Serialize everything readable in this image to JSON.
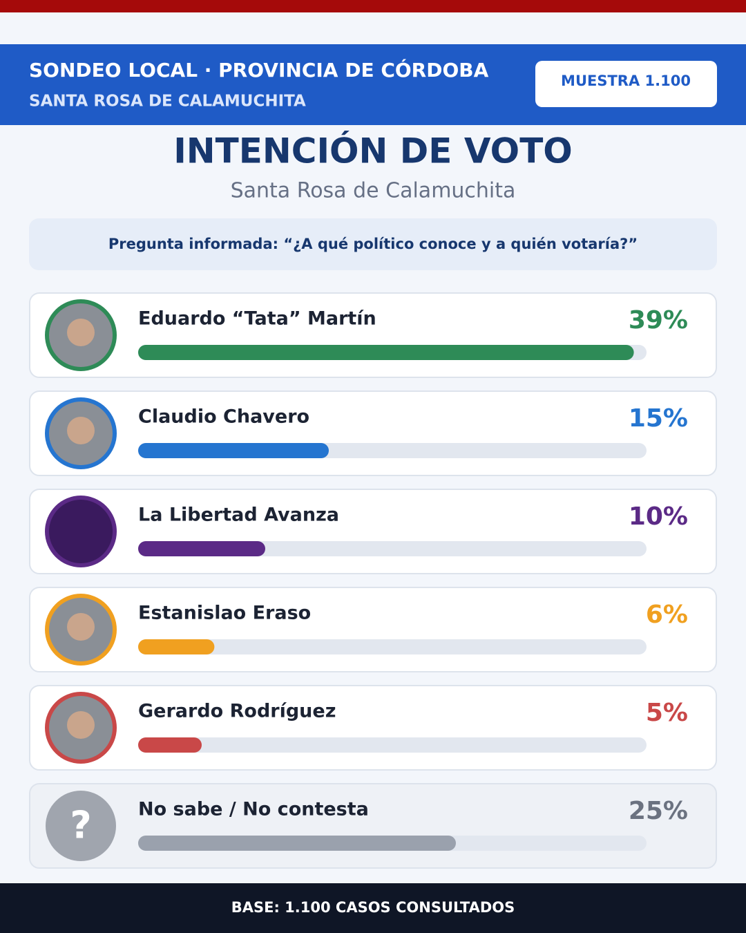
{
  "header": {
    "title": "SONDEO LOCAL · PROVINCIA DE CÓRDOBA",
    "subtitle": "SANTA ROSA DE CALAMUCHITA",
    "badge": "MUESTRA 1.100"
  },
  "question": "Pregunta informada: “¿A qué político conoce y a quién votaría?”",
  "unknown_icon": "?",
  "footer": "BASE: 1.100 CASOS CONSULTADOS",
  "chart_data": {
    "type": "bar",
    "orientation": "horizontal",
    "title": "INTENCIÓN DE VOTO",
    "subtitle": "Santa Rosa de Calamuchita",
    "categories": [
      "Eduardo “Tata” Martín",
      "Claudio Chavero",
      "La Libertad Avanza",
      "Estanislao Eraso",
      "Gerardo Rodríguez",
      "No sabe / No contesta"
    ],
    "values": [
      39,
      15,
      10,
      6,
      5,
      25
    ],
    "value_labels": [
      "39%",
      "15%",
      "10%",
      "6%",
      "5%",
      "25%"
    ],
    "colors": [
      "#2e8b57",
      "#2575d0",
      "#5b2a86",
      "#f0a020",
      "#c94848",
      "#9aa1ad"
    ],
    "xlim": [
      0,
      40
    ]
  }
}
